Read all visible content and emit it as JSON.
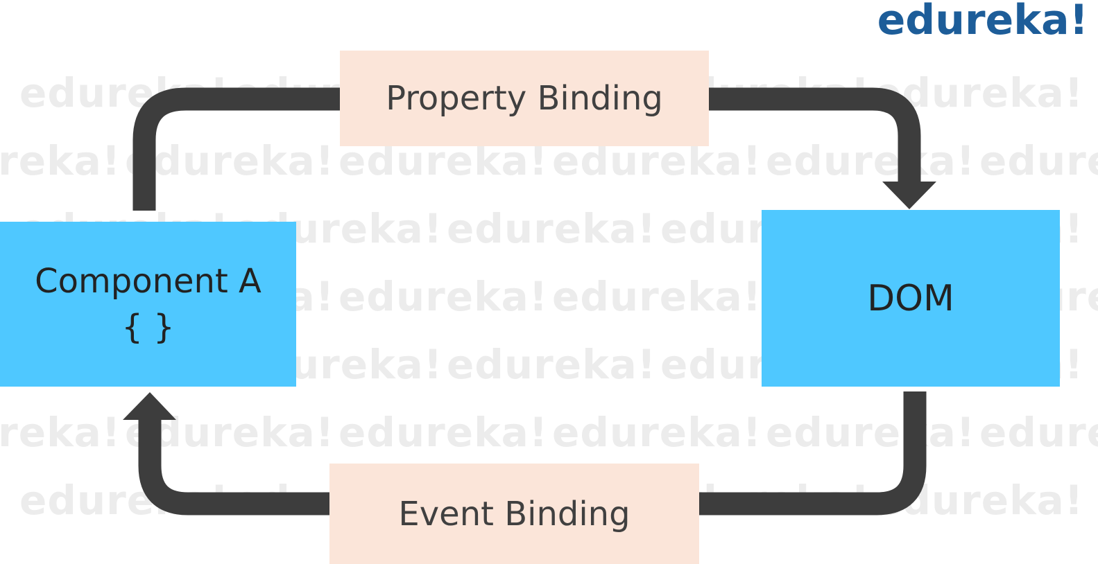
{
  "logo": "edureka!",
  "watermark_text": "edureka!",
  "diagram": {
    "nodes": {
      "component": {
        "title": "Component A",
        "subtitle": "{ }"
      },
      "dom": {
        "title": "DOM"
      }
    },
    "edges": {
      "top": {
        "label": "Property Binding",
        "from": "Component A",
        "to": "DOM"
      },
      "bottom": {
        "label": "Event Binding",
        "from": "DOM",
        "to": "Component A"
      }
    }
  },
  "colors": {
    "node_fill": "#4fc8ff",
    "label_fill": "#fbe5d9",
    "arrow": "#3d3d3d",
    "logo": "#1d5d99"
  }
}
